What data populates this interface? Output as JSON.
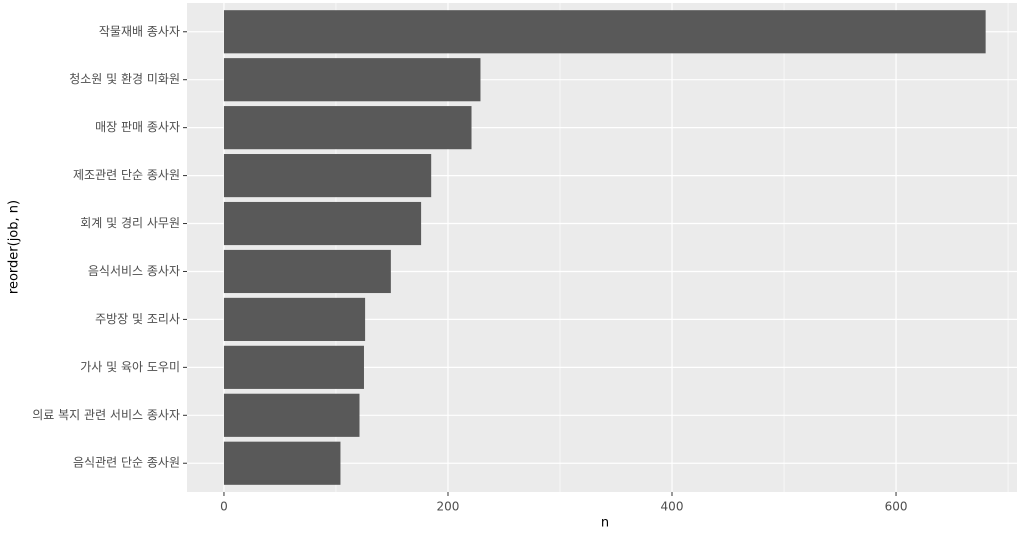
{
  "chart_data": {
    "type": "barh",
    "categories": [
      "작물재배 종사자",
      "청소원 및 환경 미화원",
      "매장 판매 종사자",
      "제조관련 단순 종사원",
      "회계 및 경리 사무원",
      "음식서비스 종사자",
      "주방장 및 조리사",
      "가사 및 육아 도우미",
      "의료 복지 관련 서비스 종사자",
      "음식관련 단순 종사원"
    ],
    "values": [
      680,
      229,
      221,
      185,
      176,
      149,
      126,
      125,
      121,
      104
    ],
    "color": "#595959",
    "x_label": "n",
    "y_label": "reorder(job, n)",
    "xlim": [
      -33,
      708
    ],
    "xticks": [
      0,
      200,
      400,
      600
    ],
    "minor_xticks": [
      100,
      300,
      500,
      700
    ],
    "grid": true
  }
}
